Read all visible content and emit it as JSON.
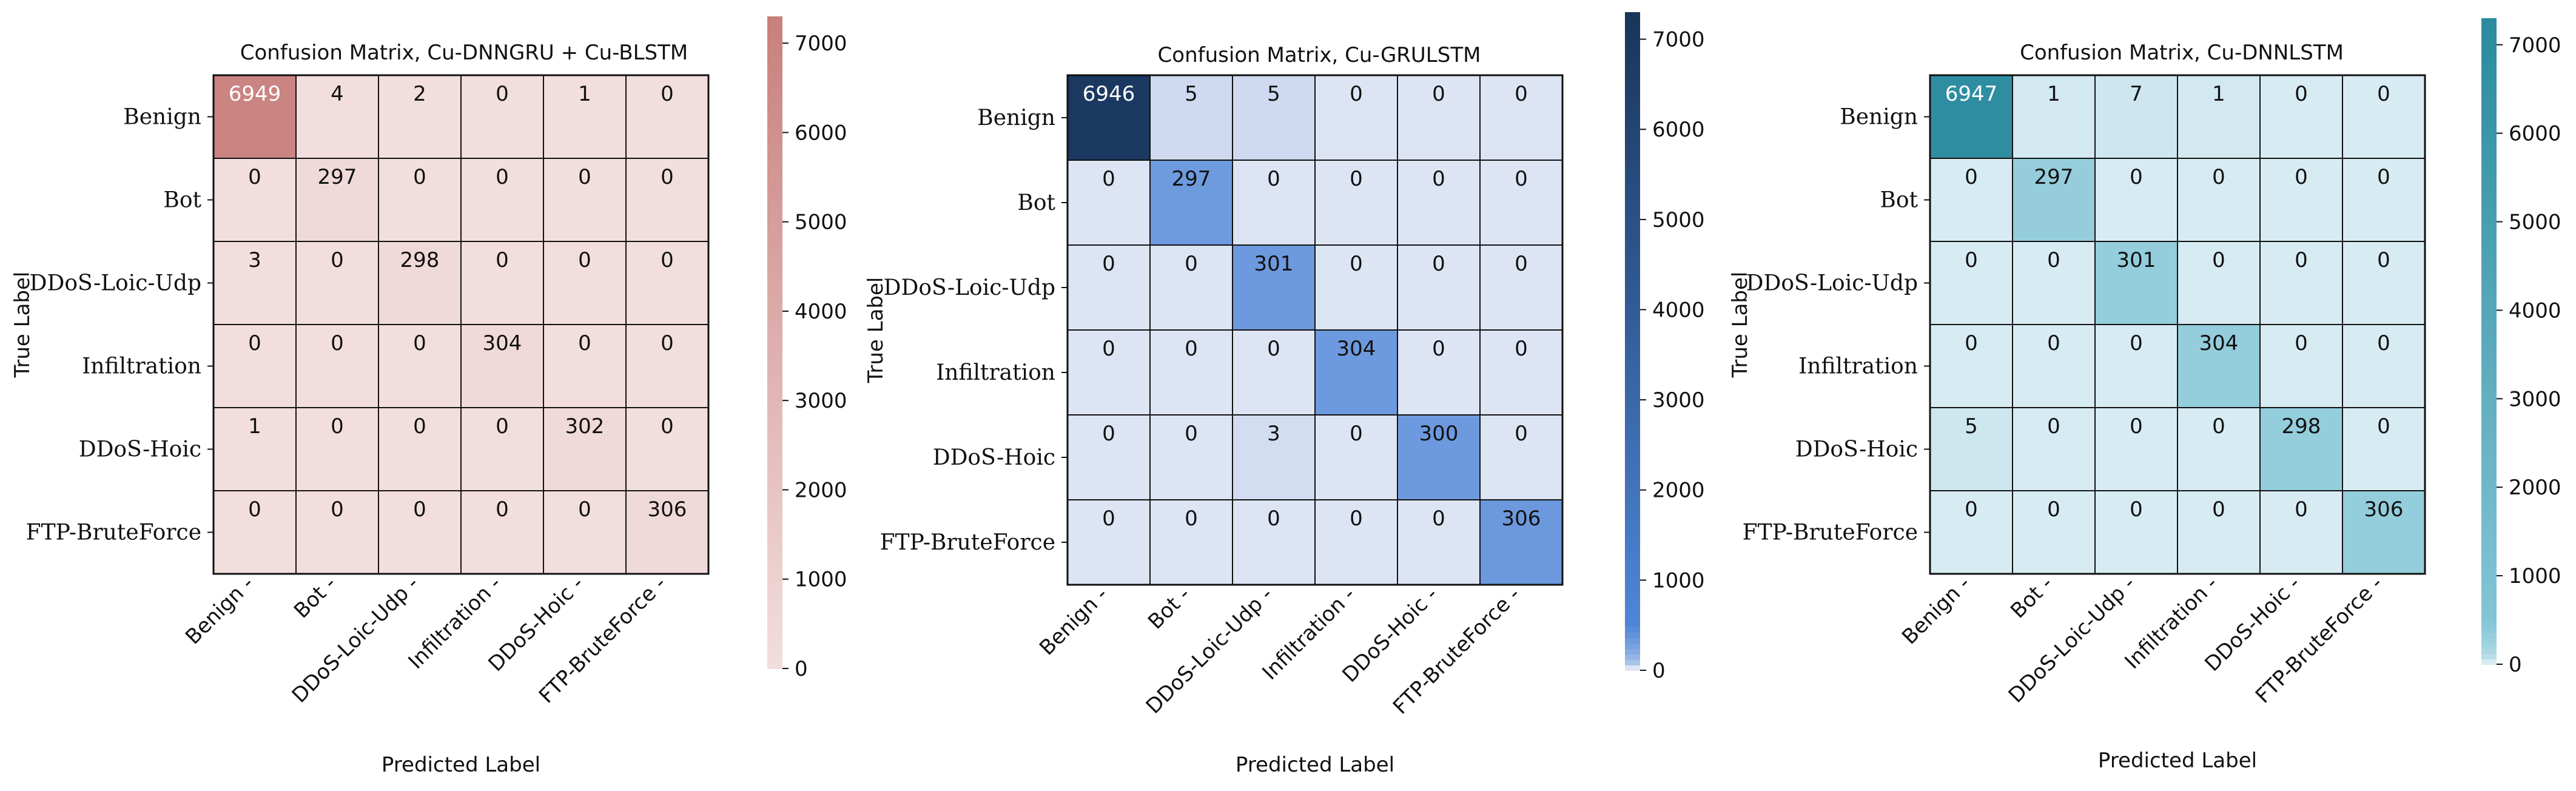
{
  "chart_data": [
    {
      "type": "heatmap",
      "title": "Confusion Matrix, Cu-DNNGRU + Cu-BLSTM",
      "xlabel": "Predicted Label",
      "ylabel": "True Label",
      "row_labels": [
        "Benign",
        "Bot",
        "DDoS-Loic-Udp",
        "Infiltration",
        "DDoS-Hoic",
        "FTP-BruteForce"
      ],
      "col_labels": [
        "Benign",
        "Bot",
        "DDoS-Loic-Udp",
        "Infiltration",
        "DDoS-Hoic",
        "FTP-BruteForce"
      ],
      "matrix": [
        [
          6949,
          4,
          2,
          0,
          1,
          0
        ],
        [
          0,
          297,
          0,
          0,
          0,
          0
        ],
        [
          3,
          0,
          298,
          0,
          0,
          0
        ],
        [
          0,
          0,
          0,
          304,
          0,
          0
        ],
        [
          1,
          0,
          0,
          0,
          302,
          0
        ],
        [
          0,
          0,
          0,
          0,
          0,
          306
        ]
      ],
      "colorbar": {
        "ticks": [
          0,
          1000,
          2000,
          3000,
          4000,
          5000,
          6000,
          7000
        ],
        "min": 0,
        "max": 7300
      },
      "colors": {
        "low": "#f2dedd",
        "high": "#c87f7c",
        "text_light": "#ffffff",
        "text_dark": "#111111"
      },
      "grid": true
    },
    {
      "type": "heatmap",
      "title": "Confusion Matrix, Cu-GRULSTM",
      "xlabel": "Predicted Label",
      "ylabel": "True Label",
      "row_labels": [
        "Benign",
        "Bot",
        "DDoS-Loic-Udp",
        "Infiltration",
        "DDoS-Hoic",
        "FTP-BruteForce"
      ],
      "col_labels": [
        "Benign",
        "Bot",
        "DDoS-Loic-Udp",
        "Infiltration",
        "DDoS-Hoic",
        "FTP-BruteForce"
      ],
      "matrix": [
        [
          6946,
          5,
          5,
          0,
          0,
          0
        ],
        [
          0,
          297,
          0,
          0,
          0,
          0
        ],
        [
          0,
          0,
          301,
          0,
          0,
          0
        ],
        [
          0,
          0,
          0,
          304,
          0,
          0
        ],
        [
          0,
          0,
          3,
          0,
          300,
          0
        ],
        [
          0,
          0,
          0,
          0,
          0,
          306
        ]
      ],
      "colorbar": {
        "ticks": [
          0,
          1000,
          2000,
          3000,
          4000,
          5000,
          6000,
          7000
        ],
        "min": 0,
        "max": 7300
      },
      "colors": {
        "low": "#dde4f3",
        "mid": "#4f86d8",
        "high": "#183559",
        "text_light": "#ffffff",
        "text_dark": "#111111"
      },
      "grid": true
    },
    {
      "type": "heatmap",
      "title": "Confusion Matrix, Cu-DNNLSTM",
      "xlabel": "Predicted Label",
      "ylabel": "True Label",
      "row_labels": [
        "Benign",
        "Bot",
        "DDoS-Loic-Udp",
        "Infiltration",
        "DDoS-Hoic",
        "FTP-BruteForce"
      ],
      "col_labels": [
        "Benign",
        "Bot",
        "DDoS-Loic-Udp",
        "Infiltration",
        "DDoS-Hoic",
        "FTP-BruteForce"
      ],
      "matrix": [
        [
          6947,
          1,
          7,
          1,
          0,
          0
        ],
        [
          0,
          297,
          0,
          0,
          0,
          0
        ],
        [
          0,
          0,
          301,
          0,
          0,
          0
        ],
        [
          0,
          0,
          0,
          304,
          0,
          0
        ],
        [
          5,
          0,
          0,
          0,
          298,
          0
        ],
        [
          0,
          0,
          0,
          0,
          0,
          306
        ]
      ],
      "colorbar": {
        "ticks": [
          0,
          1000,
          2000,
          3000,
          4000,
          5000,
          6000,
          7000
        ],
        "min": 0,
        "max": 7300
      },
      "colors": {
        "low": "#d7ebf2",
        "mid": "#82c5d6",
        "high": "#2b8a9e",
        "text_light": "#ffffff",
        "text_dark": "#111111"
      },
      "grid": true
    }
  ]
}
